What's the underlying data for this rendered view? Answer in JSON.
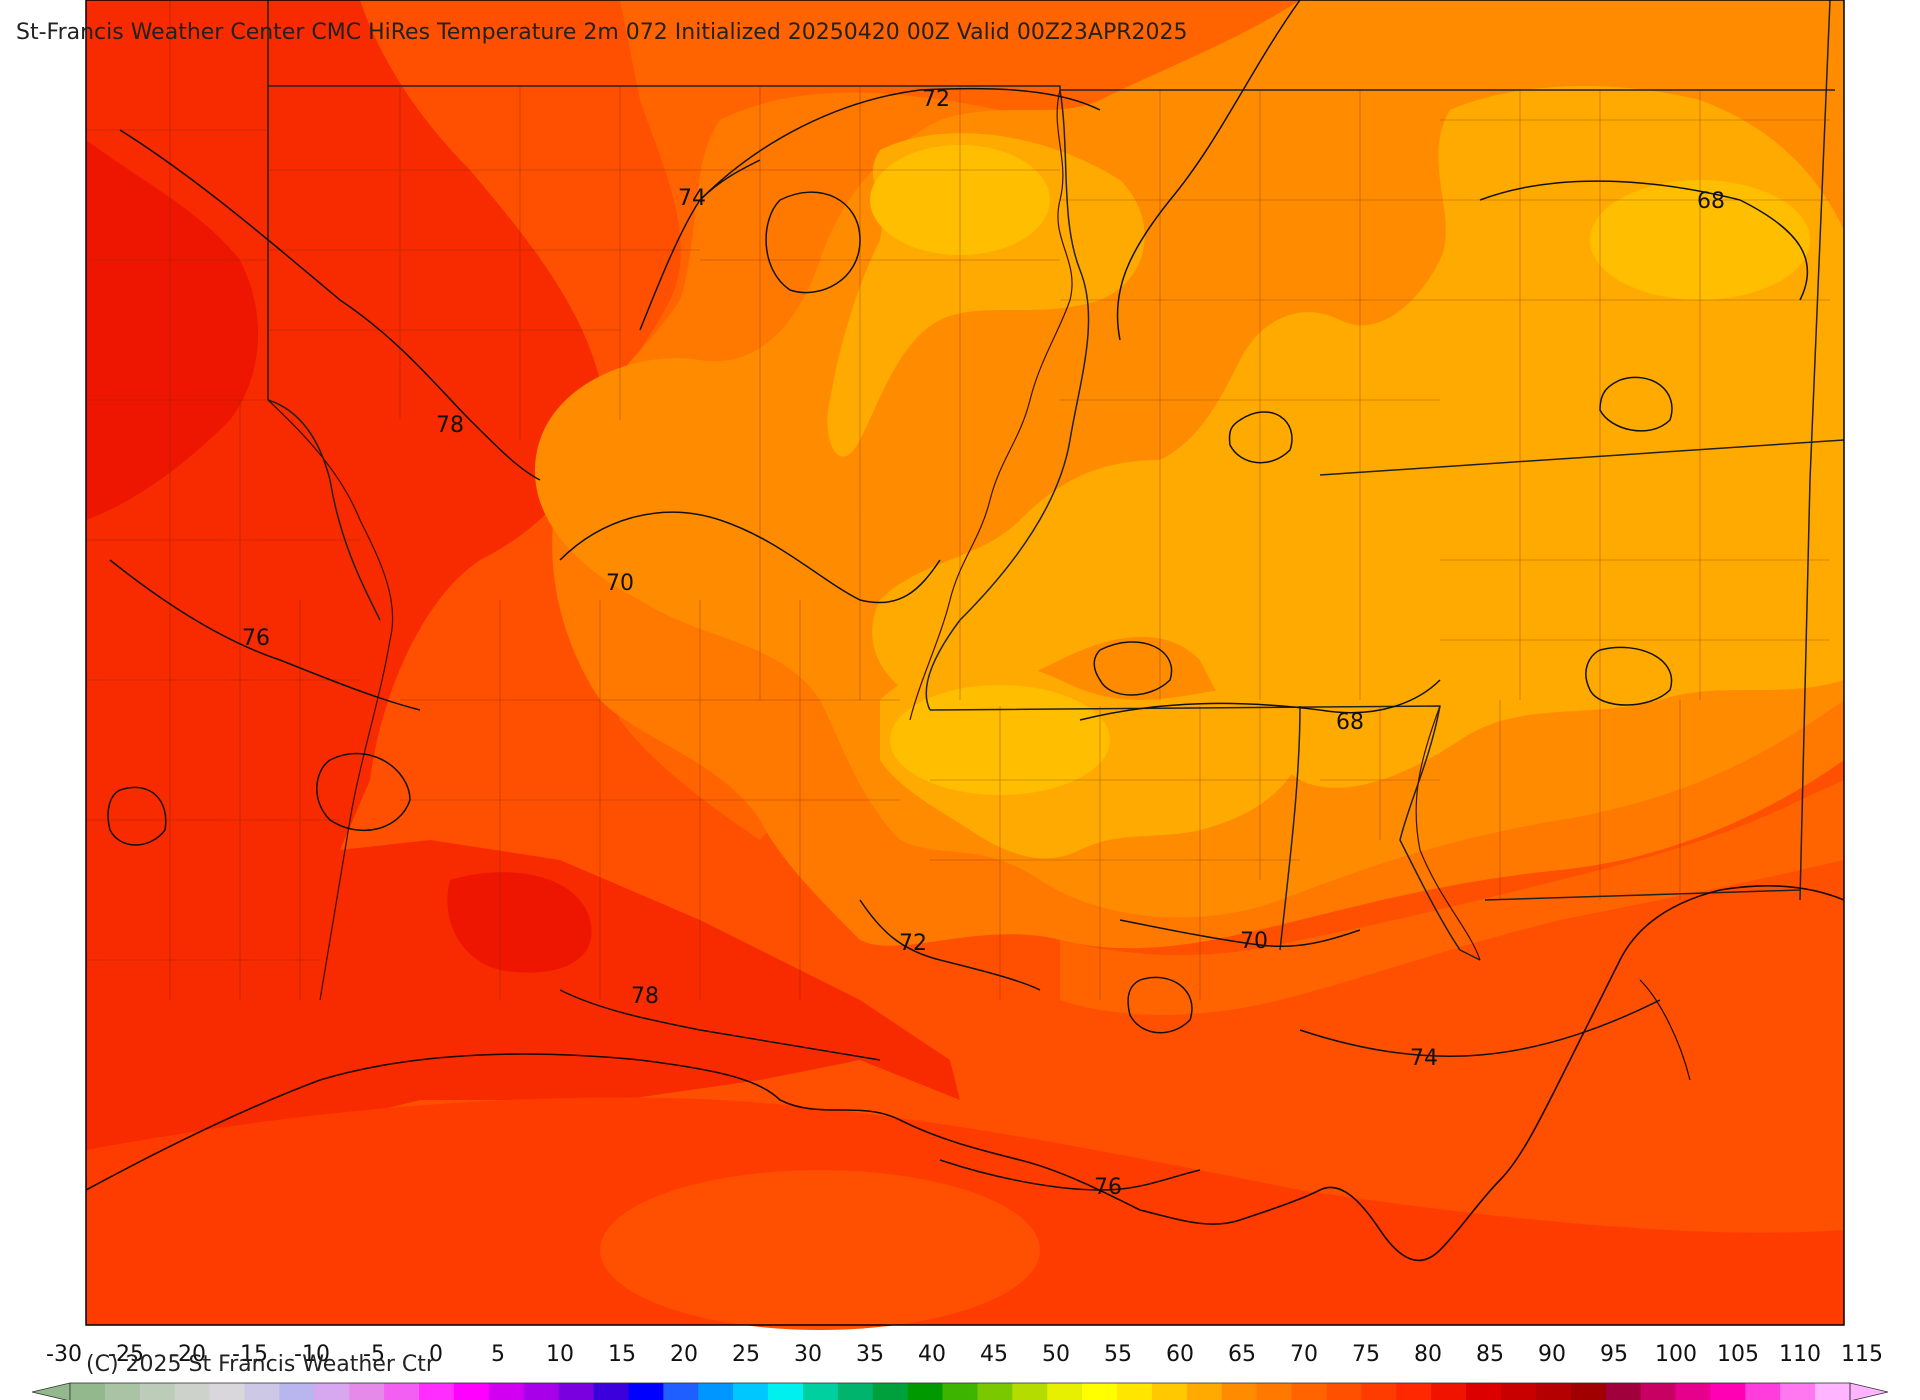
{
  "title": "St-Francis Weather Center CMC HiRes Temperature 2m  072 Initialized 20250420 00Z Valid 00Z23APR2025",
  "copyright": "(C) 2025 St Francis Weather Ctr",
  "contour_labels": [
    {
      "id": "c72-north",
      "text": "72"
    },
    {
      "id": "c74-north",
      "text": "74"
    },
    {
      "id": "c68-east",
      "text": "68"
    },
    {
      "id": "c78-west",
      "text": "78"
    },
    {
      "id": "c70-central",
      "text": "70"
    },
    {
      "id": "c76-west",
      "text": "76"
    },
    {
      "id": "c68-central",
      "text": "68"
    },
    {
      "id": "c72-south",
      "text": "72"
    },
    {
      "id": "c70-south",
      "text": "70"
    },
    {
      "id": "c78-south",
      "text": "78"
    },
    {
      "id": "c74-coast",
      "text": "74"
    },
    {
      "id": "c76-gulf",
      "text": "76"
    }
  ],
  "colorbar": {
    "ticks": [
      "-30",
      "-25",
      "-20",
      "-15",
      "-10",
      "-5",
      "0",
      "5",
      "10",
      "15",
      "20",
      "25",
      "30",
      "35",
      "40",
      "45",
      "50",
      "55",
      "60",
      "65",
      "70",
      "75",
      "80",
      "85",
      "90",
      "95",
      "100",
      "105",
      "110",
      "115"
    ],
    "colors": [
      "#93b88e",
      "#a9c3a4",
      "#bcccb8",
      "#cdd3ca",
      "#d9d6dc",
      "#ccc8e6",
      "#b9b5ef",
      "#d7a8f0",
      "#e58ae8",
      "#f25ff2",
      "#ff2dff",
      "#ff00ff",
      "#d200f0",
      "#a800e8",
      "#7a00e0",
      "#3c00dc",
      "#0000ff",
      "#1f5fff",
      "#0096ff",
      "#00c8ff",
      "#00f0f0",
      "#00d0a0",
      "#00b46e",
      "#00a03c",
      "#009a00",
      "#3cb400",
      "#7ac800",
      "#b4dc00",
      "#e6f000",
      "#ffff00",
      "#ffe600",
      "#ffc800",
      "#ffaa00",
      "#ff8c00",
      "#ff7800",
      "#ff6400",
      "#ff5000",
      "#ff3c00",
      "#ff2800",
      "#f01400",
      "#dc0000",
      "#c80000",
      "#b40000",
      "#a00000",
      "#a0003c",
      "#c80064",
      "#e6008c",
      "#ff00b4",
      "#ff3cdc",
      "#ff78f0",
      "#ffb4ff"
    ]
  },
  "field_colors": {
    "t66": "#ffbe00",
    "t68": "#ffaa00",
    "t70": "#ff8c00",
    "t72": "#ff7800",
    "t74": "#ff6400",
    "t76": "#ff4f00",
    "t78": "#ff3c00",
    "t80": "#f82a00",
    "t82": "#ee1600",
    "land_edge": "#000000"
  }
}
